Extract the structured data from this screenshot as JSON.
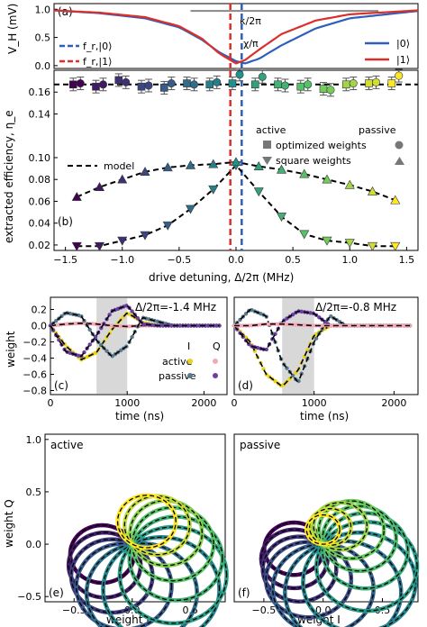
{
  "colors": {
    "state0": "#2f5fb8",
    "state1": "#d9302c",
    "model": "#000000",
    "flat_line": "#444444",
    "arrow": "#888888",
    "shade": "#d8d8d8",
    "pinkQ": "#f4a8b8",
    "vir0": "#440154",
    "vir1": "#3b528b",
    "vir2": "#21918c",
    "vir3": "#5ec962",
    "vir4": "#fde725"
  },
  "chart_data": [
    {
      "id": "a",
      "type": "line",
      "panel_label": "(a)",
      "ylabel": "V_H (mV)",
      "xlim": [
        -1.6,
        1.6
      ],
      "ylim": [
        -0.05,
        1.1
      ],
      "yticks": [
        0.0,
        0.5,
        1.0
      ],
      "ytick_labels": [
        "0.0",
        "0.5",
        "1.0"
      ],
      "x": [
        -1.6,
        -1.2,
        -0.8,
        -0.5,
        -0.3,
        -0.15,
        0.0,
        0.08,
        0.2,
        0.4,
        0.7,
        1.0,
        1.6
      ],
      "series": [
        {
          "name": "|0⟩",
          "color": "#2f5fb8",
          "values": [
            0.98,
            0.93,
            0.84,
            0.68,
            0.46,
            0.24,
            0.08,
            0.04,
            0.12,
            0.36,
            0.66,
            0.84,
            0.97
          ]
        },
        {
          "name": "|1⟩",
          "color": "#d9302c",
          "values": [
            0.98,
            0.94,
            0.86,
            0.7,
            0.48,
            0.22,
            0.04,
            0.1,
            0.28,
            0.56,
            0.8,
            0.91,
            0.98
          ]
        }
      ],
      "vlines": [
        {
          "label": "f_r,|0⟩",
          "x": 0.05,
          "color": "#2f5fb8"
        },
        {
          "label": "f_r,|1⟩",
          "x": -0.05,
          "color": "#d9302c"
        }
      ],
      "annotations": [
        "κ/2π",
        "χ/π"
      ],
      "legend": "right"
    },
    {
      "id": "b",
      "type": "scatter",
      "panel_label": "(b)",
      "xlabel": "drive detuning, Δ/2π (MHz)",
      "ylabel": "extracted efficiency, η_e",
      "xlim": [
        -1.6,
        1.6
      ],
      "ylim": [
        0.015,
        0.18
      ],
      "xticks": [
        -1.5,
        -1.0,
        -0.5,
        0.0,
        0.5,
        1.0,
        1.5
      ],
      "xtick_labels": [
        "−1.5",
        "−1.0",
        "−0.5",
        "0.0",
        "0.5",
        "1.0",
        "1.5"
      ],
      "yticks": [
        0.02,
        0.04,
        0.06,
        0.08,
        0.1,
        0.14,
        0.16
      ],
      "ytick_labels": [
        "0.02",
        "0.04",
        "0.06",
        "0.08",
        "0.10",
        "0.14",
        "0.16"
      ],
      "x_optimized": [
        -1.4,
        -1.2,
        -1.0,
        -0.8,
        -0.6,
        -0.4,
        -0.2,
        0.0,
        0.2,
        0.4,
        0.6,
        0.8,
        1.0,
        1.2,
        1.4
      ],
      "optimized_active": [
        0.167,
        0.165,
        0.171,
        0.165,
        0.164,
        0.168,
        0.167,
        0.168,
        0.167,
        0.167,
        0.165,
        0.163,
        0.167,
        0.168,
        0.168
      ],
      "optimized_passive": [
        0.168,
        0.167,
        0.169,
        0.166,
        0.168,
        0.167,
        0.169,
        0.176,
        0.174,
        0.166,
        0.167,
        0.162,
        0.168,
        0.169,
        0.175
      ],
      "optimized_model": 0.167,
      "x_square": [
        -1.4,
        -1.2,
        -1.0,
        -0.8,
        -0.6,
        -0.4,
        -0.2,
        0.0,
        0.2,
        0.4,
        0.6,
        0.8,
        1.0,
        1.2,
        1.4
      ],
      "square_active": [
        0.019,
        0.019,
        0.024,
        0.029,
        0.038,
        0.053,
        0.071,
        0.093,
        0.069,
        0.046,
        0.03,
        0.024,
        0.022,
        0.019,
        0.019
      ],
      "square_passive": [
        0.064,
        0.073,
        0.08,
        0.087,
        0.091,
        0.093,
        0.094,
        0.096,
        0.092,
        0.089,
        0.085,
        0.08,
        0.075,
        0.069,
        0.061
      ],
      "legend": [
        "model",
        "active",
        "passive",
        "optimized weights",
        "square weights"
      ]
    },
    {
      "id": "c",
      "type": "line",
      "panel_label": "(c)",
      "title": "Δ/2π=-1.4 MHz",
      "xlabel": "time (ns)",
      "ylabel": "weight",
      "xlim": [
        0,
        2300
      ],
      "ylim": [
        -0.85,
        0.35
      ],
      "xticks": [
        0,
        1000,
        2000
      ],
      "yticks": [
        -0.8,
        -0.6,
        -0.4,
        -0.2,
        0.0,
        0.2
      ],
      "ytick_labels": [
        "−0.8",
        "−0.6",
        "−0.4",
        "−0.2",
        "0.0",
        "0.2"
      ],
      "shaded_interval": [
        600,
        1000
      ],
      "x": [
        0,
        200,
        400,
        600,
        800,
        1000,
        1200,
        1400,
        1600,
        1800,
        2000,
        2200
      ],
      "series": [
        {
          "name": "I active",
          "values": [
            0.0,
            -0.25,
            -0.42,
            -0.33,
            -0.05,
            0.16,
            0.04,
            0.0,
            0.0,
            0.0,
            0.0,
            0.0
          ]
        },
        {
          "name": "Q active",
          "values": [
            0.0,
            0.02,
            0.03,
            0.02,
            0.0,
            -0.01,
            0.0,
            0.0,
            0.0,
            0.0,
            0.0,
            0.0
          ]
        },
        {
          "name": "I passive",
          "values": [
            0.0,
            0.16,
            0.12,
            -0.18,
            -0.38,
            -0.25,
            0.1,
            0.05,
            0.0,
            0.0,
            0.0,
            0.0
          ]
        },
        {
          "name": "Q passive",
          "values": [
            0.0,
            -0.32,
            -0.38,
            -0.12,
            0.18,
            0.25,
            0.02,
            0.0,
            0.0,
            0.0,
            0.0,
            0.0
          ]
        }
      ],
      "legend_columns": [
        "I",
        "Q"
      ],
      "legend_rows": [
        "active",
        "passive"
      ]
    },
    {
      "id": "d",
      "type": "line",
      "panel_label": "(d)",
      "title": "Δ/2π=-0.8 MHz",
      "xlabel": "time (ns)",
      "xlim": [
        0,
        2300
      ],
      "ylim": [
        -0.85,
        0.35
      ],
      "xticks": [
        0,
        1000,
        2000
      ],
      "shaded_interval": [
        600,
        1000
      ],
      "x": [
        0,
        200,
        400,
        600,
        800,
        1000,
        1200,
        1400,
        1600,
        1800,
        2000,
        2200
      ],
      "series": [
        {
          "name": "I active",
          "values": [
            0.0,
            -0.2,
            -0.6,
            -0.75,
            -0.55,
            -0.12,
            0.0,
            0.0,
            0.0,
            0.0,
            0.0,
            0.0
          ]
        },
        {
          "name": "I passive",
          "values": [
            0.0,
            0.2,
            0.12,
            -0.45,
            -0.7,
            -0.2,
            0.12,
            0.0,
            0.0,
            0.0,
            0.0,
            0.0
          ]
        },
        {
          "name": "Q passive",
          "values": [
            0.0,
            -0.25,
            -0.3,
            0.05,
            0.18,
            0.15,
            0.0,
            0.0,
            0.0,
            0.0,
            0.0,
            0.0
          ]
        },
        {
          "name": "Q active",
          "values": [
            0.0,
            0.0,
            0.02,
            0.02,
            0.01,
            0.0,
            0.0,
            0.0,
            0.0,
            0.0,
            0.0,
            0.0
          ]
        }
      ]
    },
    {
      "id": "e",
      "type": "line",
      "panel_label": "(e)",
      "title": "active",
      "xlabel": "weight I",
      "ylabel": "weight Q",
      "xlim": [
        -0.75,
        0.8
      ],
      "ylim": [
        -0.55,
        1.05
      ],
      "xticks": [
        -0.5,
        0.0,
        0.5
      ],
      "xtick_labels": [
        "−0.5",
        "0.0",
        "0.5"
      ],
      "yticks": [
        -0.5,
        0.0,
        0.5,
        1.0
      ],
      "ytick_labels": [
        "−0.5",
        "0.0",
        "0.5",
        "1.0"
      ],
      "loop_angles_deg": [
        -160,
        -140,
        -120,
        -100,
        -80,
        -60,
        -40,
        -20,
        0,
        20,
        40,
        60
      ],
      "loop_diameters": [
        0.55,
        0.62,
        0.7,
        0.82,
        0.95,
        1.0,
        0.92,
        0.8,
        0.7,
        0.62,
        0.56,
        0.5
      ]
    },
    {
      "id": "f",
      "type": "line",
      "panel_label": "(f)",
      "title": "passive",
      "xlabel": "weight I",
      "xlim": [
        -0.75,
        0.8
      ],
      "ylim": [
        -0.55,
        1.05
      ],
      "xticks": [
        -0.5,
        0.0,
        0.5
      ],
      "xtick_labels": [
        "−0.5",
        "0.0",
        "0.5"
      ],
      "loop_angles_deg": [
        -170,
        -150,
        -130,
        -110,
        -90,
        -70,
        -50,
        -30,
        -10,
        10,
        30,
        50,
        70,
        90
      ],
      "loop_diameters": [
        0.5,
        0.56,
        0.62,
        0.72,
        0.85,
        0.98,
        0.95,
        0.85,
        0.72,
        0.62,
        0.55,
        0.45,
        0.35,
        0.28
      ]
    }
  ]
}
